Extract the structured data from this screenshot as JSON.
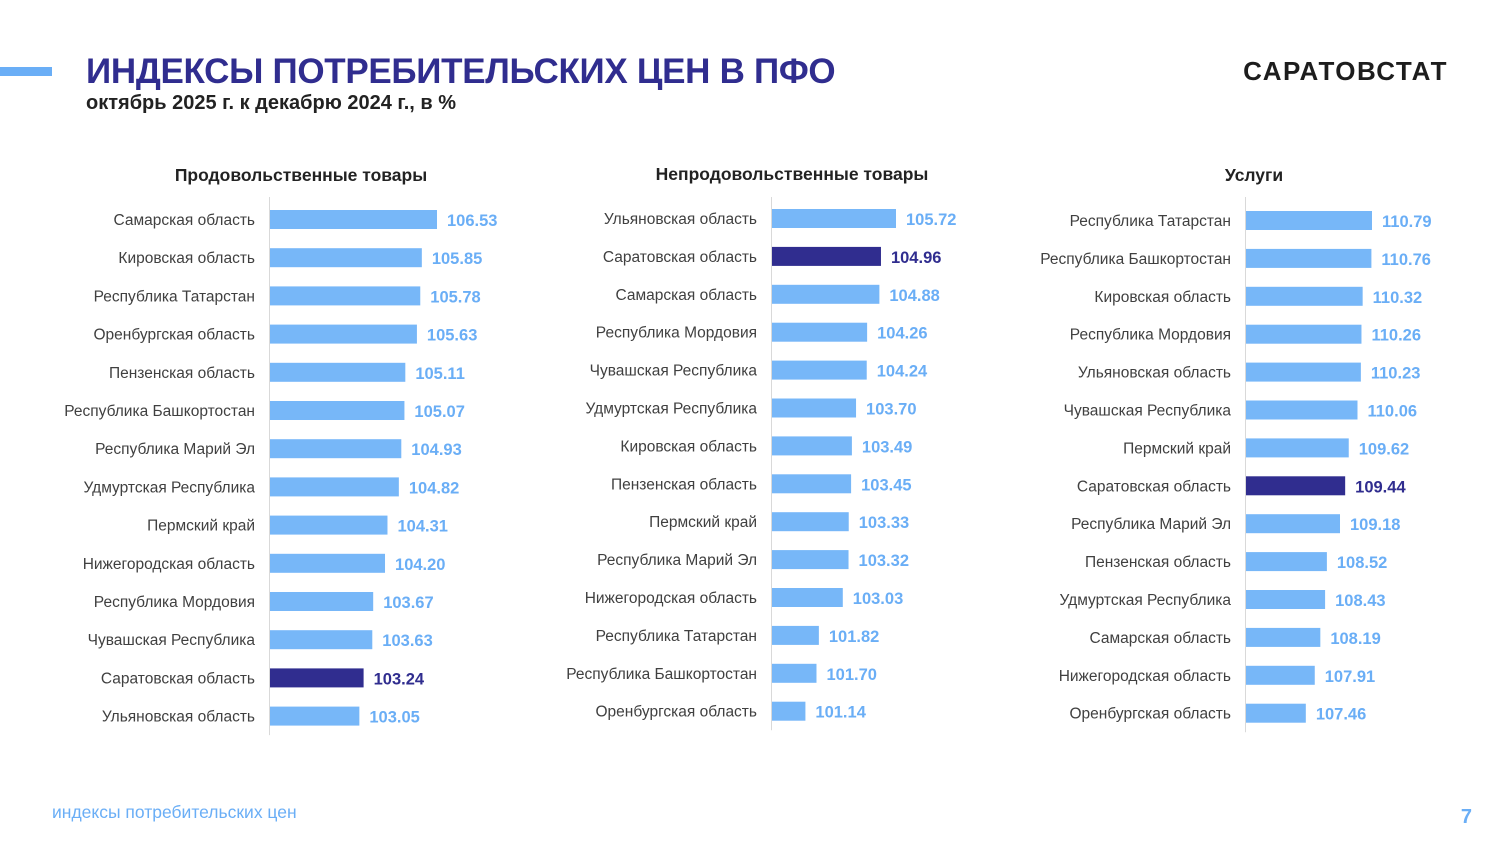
{
  "header": {
    "title": "ИНДЕКСЫ ПОТРЕБИТЕЛЬСКИХ ЦЕН В ПФО",
    "subtitle": "октябрь 2025 г. к декабрю 2024 г., в %",
    "brand": "САРАТОВСТАТ"
  },
  "footer": {
    "text": "индексы потребительских цен",
    "page_number": "7"
  },
  "colors": {
    "bar": "#77b7f8",
    "highlight_bar": "#302d8f",
    "label": "#6aaef6",
    "highlight_label": "#302d8f"
  },
  "chart_data": [
    {
      "type": "bar",
      "orientation": "horizontal",
      "title": "Продовольственные товары",
      "highlight": "Саратовская область",
      "categories": [
        "Самарская область",
        "Кировская область",
        "Республика Татарстан",
        "Оренбургская область",
        "Пензенская область",
        "Республика Башкортостан",
        "Республика Марий Эл",
        "Удмуртская Республика",
        "Пермский край",
        "Нижегородская область",
        "Республика Мордовия",
        "Чувашская Республика",
        "Саратовская область",
        "Ульяновская область"
      ],
      "values": [
        106.53,
        105.85,
        105.78,
        105.63,
        105.11,
        105.07,
        104.93,
        104.82,
        104.31,
        104.2,
        103.67,
        103.63,
        103.24,
        103.05
      ],
      "labels": [
        "106.53",
        "105.85",
        "105.78",
        "105.63",
        "105.11",
        "105.07",
        "104.93",
        "104.82",
        "104.31",
        "104.20",
        "103.67",
        "103.63",
        "103.24",
        "103.05"
      ],
      "xlim": [
        99.0,
        106.53
      ]
    },
    {
      "type": "bar",
      "orientation": "horizontal",
      "title": "Непродовольственные товары",
      "highlight": "Саратовская область",
      "categories": [
        "Ульяновская область",
        "Саратовская область",
        "Самарская область",
        "Республика Мордовия",
        "Чувашская Республика",
        "Удмуртская Республика",
        "Кировская область",
        "Пензенская область",
        "Пермский край",
        "Республика Марий Эл",
        "Нижегородская область",
        "Республика Татарстан",
        "Республика Башкортостан",
        "Оренбургская область"
      ],
      "values": [
        105.72,
        104.96,
        104.88,
        104.26,
        104.24,
        103.7,
        103.49,
        103.45,
        103.33,
        103.32,
        103.03,
        101.82,
        101.7,
        101.14
      ],
      "labels": [
        "105.72",
        "104.96",
        "104.88",
        "104.26",
        "104.24",
        "103.70",
        "103.49",
        "103.45",
        "103.33",
        "103.32",
        "103.03",
        "101.82",
        "101.70",
        "101.14"
      ],
      "xlim": [
        99.4,
        105.72
      ]
    },
    {
      "type": "bar",
      "orientation": "horizontal",
      "title": "Услуги",
      "highlight": "Саратовская область",
      "categories": [
        "Республика Татарстан",
        "Республика Башкортостан",
        "Кировская область",
        "Республика Мордовия",
        "Ульяновская область",
        "Чувашская Республика",
        "Пермский край",
        "Саратовская область",
        "Республика Марий Эл",
        "Пензенская область",
        "Удмуртская Республика",
        "Самарская область",
        "Нижегородская область",
        "Оренбургская область"
      ],
      "values": [
        110.79,
        110.76,
        110.32,
        110.26,
        110.23,
        110.06,
        109.62,
        109.44,
        109.18,
        108.52,
        108.43,
        108.19,
        107.91,
        107.46
      ],
      "labels": [
        "110.79",
        "110.76",
        "110.32",
        "110.26",
        "110.23",
        "110.06",
        "109.62",
        "109.44",
        "109.18",
        "108.52",
        "108.43",
        "108.19",
        "107.91",
        "107.46"
      ],
      "xlim": [
        104.4,
        110.79
      ]
    }
  ]
}
